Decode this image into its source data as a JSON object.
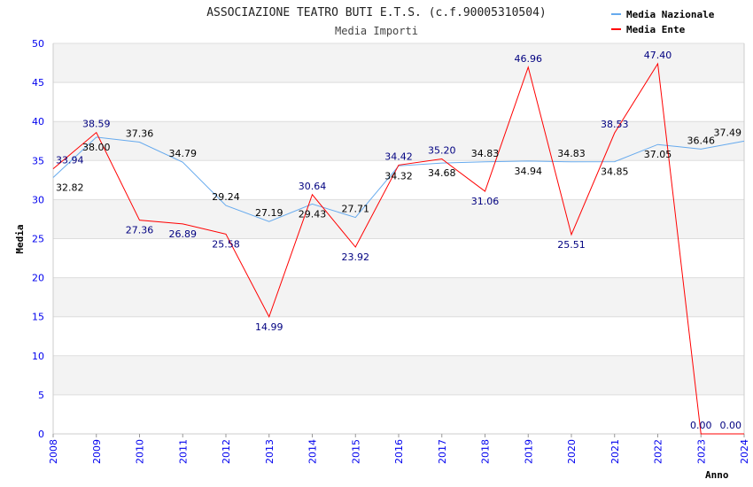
{
  "chart_data": {
    "type": "line",
    "title": "ASSOCIAZIONE TEATRO BUTI E.T.S. (c.f.90005310504)",
    "subtitle": "Media Importi",
    "xlabel": "Anno",
    "ylabel": "Media",
    "ylim": [
      0,
      50
    ],
    "yticks": [
      "0",
      "5",
      "10",
      "15",
      "20",
      "25",
      "30",
      "35",
      "40",
      "45",
      "50"
    ],
    "x": [
      "2008",
      "2009",
      "2010",
      "2011",
      "2012",
      "2013",
      "2014",
      "2015",
      "2016",
      "2017",
      "2018",
      "2019",
      "2020",
      "2021",
      "2022",
      "2023",
      "2024"
    ],
    "grid": true,
    "legend_position": "top-right",
    "series": [
      {
        "name": "Media Nazionale",
        "color": "#66aaee",
        "label_color": "#000000",
        "values": [
          32.82,
          38.0,
          37.36,
          34.79,
          29.24,
          27.19,
          29.43,
          27.71,
          34.32,
          34.68,
          34.83,
          34.94,
          34.83,
          34.85,
          37.05,
          36.46,
          37.49
        ],
        "labels": [
          "32.82",
          "38.00",
          "37.36",
          "34.79",
          "29.24",
          "27.19",
          "29.43",
          "27.71",
          "34.32",
          "34.68",
          "34.83",
          "34.94",
          "34.83",
          "34.85",
          "37.05",
          "36.46",
          "37.49"
        ]
      },
      {
        "name": "Media Ente",
        "color": "#ff0000",
        "label_color": "#000080",
        "values": [
          33.94,
          38.59,
          27.36,
          26.89,
          25.58,
          14.99,
          30.64,
          23.92,
          34.42,
          35.2,
          31.06,
          46.96,
          25.51,
          38.53,
          47.4,
          0.0,
          0.0
        ],
        "labels": [
          "33.94",
          "38.59",
          "27.36",
          "26.89",
          "25.58",
          "14.99",
          "30.64",
          "23.92",
          "34.42",
          "35.20",
          "31.06",
          "46.96",
          "25.51",
          "38.53",
          "47.40",
          "0.00",
          "0.00"
        ]
      }
    ]
  }
}
